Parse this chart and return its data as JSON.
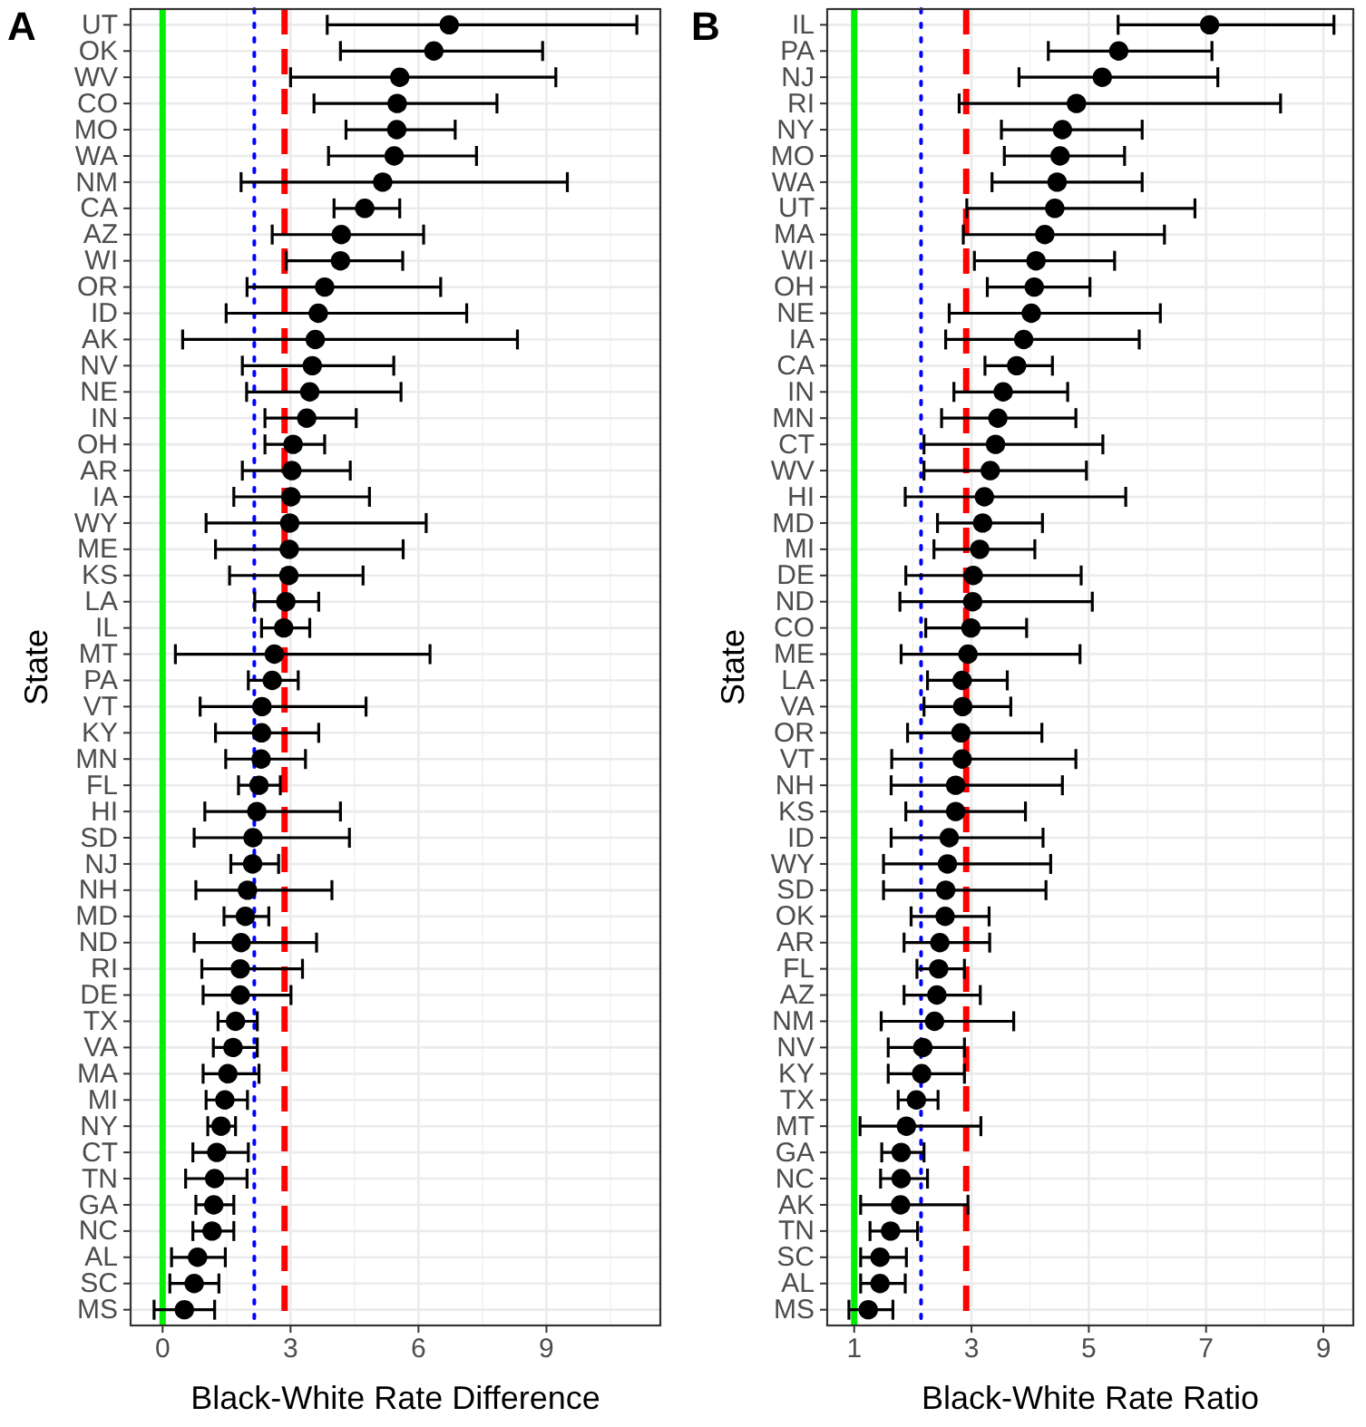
{
  "chart_data": [
    {
      "type": "scatter",
      "orientation": "horizontal",
      "title": "A",
      "xlabel": "Black-White Rate Difference",
      "ylabel": "State",
      "marker": "circle",
      "grid": true,
      "categories": [
        "UT",
        "OK",
        "WV",
        "CO",
        "MO",
        "WA",
        "NM",
        "CA",
        "AZ",
        "WI",
        "OR",
        "ID",
        "AK",
        "NV",
        "NE",
        "IN",
        "OH",
        "AR",
        "IA",
        "WY",
        "ME",
        "KS",
        "LA",
        "IL",
        "MT",
        "PA",
        "VT",
        "KY",
        "MN",
        "FL",
        "HI",
        "SD",
        "NJ",
        "NH",
        "MD",
        "ND",
        "RI",
        "DE",
        "TX",
        "VA",
        "MA",
        "MI",
        "NY",
        "CT",
        "TN",
        "GA",
        "NC",
        "AL",
        "SC",
        "MS"
      ],
      "xlim": [
        -0.75,
        11.67
      ],
      "xticks": [
        0,
        3,
        6,
        9
      ],
      "series": [
        {
          "color": "#000000",
          "values": [
            6.72,
            6.36,
            5.56,
            5.5,
            5.49,
            5.43,
            5.16,
            4.74,
            4.19,
            4.17,
            3.8,
            3.65,
            3.58,
            3.51,
            3.45,
            3.38,
            3.06,
            3.03,
            3.01,
            2.98,
            2.97,
            2.96,
            2.89,
            2.84,
            2.62,
            2.57,
            2.33,
            2.32,
            2.31,
            2.26,
            2.21,
            2.12,
            2.11,
            1.99,
            1.94,
            1.84,
            1.82,
            1.82,
            1.71,
            1.65,
            1.53,
            1.46,
            1.37,
            1.27,
            1.22,
            1.2,
            1.16,
            0.82,
            0.74,
            0.51
          ],
          "errors": [
            [
              3.86,
              11.12
            ],
            [
              4.17,
              8.91
            ],
            [
              3.0,
              9.22
            ],
            [
              3.55,
              7.84
            ],
            [
              4.3,
              6.86
            ],
            [
              3.89,
              7.36
            ],
            [
              1.84,
              9.49
            ],
            [
              4.02,
              5.56
            ],
            [
              2.57,
              6.12
            ],
            [
              2.9,
              5.63
            ],
            [
              1.98,
              6.52
            ],
            [
              1.49,
              7.13
            ],
            [
              0.47,
              8.32
            ],
            [
              1.87,
              5.42
            ],
            [
              1.97,
              5.59
            ],
            [
              2.4,
              4.54
            ],
            [
              2.4,
              3.8
            ],
            [
              1.87,
              4.4
            ],
            [
              1.67,
              4.85
            ],
            [
              1.02,
              6.18
            ],
            [
              1.24,
              5.64
            ],
            [
              1.57,
              4.7
            ],
            [
              2.16,
              3.66
            ],
            [
              2.32,
              3.45
            ],
            [
              0.3,
              6.27
            ],
            [
              2.01,
              3.18
            ],
            [
              0.88,
              4.77
            ],
            [
              1.24,
              3.66
            ],
            [
              1.48,
              3.35
            ],
            [
              1.78,
              2.76
            ],
            [
              0.99,
              4.17
            ],
            [
              0.74,
              4.38
            ],
            [
              1.6,
              2.72
            ],
            [
              0.78,
              3.97
            ],
            [
              1.44,
              2.49
            ],
            [
              0.74,
              3.61
            ],
            [
              0.92,
              3.28
            ],
            [
              0.95,
              3.01
            ],
            [
              1.3,
              2.22
            ],
            [
              1.19,
              2.22
            ],
            [
              0.95,
              2.26
            ],
            [
              1.02,
              1.99
            ],
            [
              1.06,
              1.71
            ],
            [
              0.71,
              2.01
            ],
            [
              0.54,
              1.98
            ],
            [
              0.78,
              1.67
            ],
            [
              0.71,
              1.67
            ],
            [
              0.21,
              1.47
            ],
            [
              0.17,
              1.32
            ],
            [
              -0.2,
              1.22
            ]
          ]
        }
      ],
      "ref_lines": [
        {
          "axis": "x",
          "value": 0,
          "color": "#00ee00",
          "line_style": "solid"
        },
        {
          "axis": "x",
          "value": 2.15,
          "color": "#0000ff",
          "line_style": "dotted"
        },
        {
          "axis": "x",
          "value": 2.86,
          "color": "#ff0000",
          "line_style": "dashed"
        }
      ]
    },
    {
      "type": "scatter",
      "orientation": "horizontal",
      "title": "B",
      "xlabel": "Black-White Rate Ratio",
      "ylabel": "State",
      "marker": "circle",
      "grid": true,
      "categories": [
        "IL",
        "PA",
        "NJ",
        "RI",
        "NY",
        "MO",
        "WA",
        "UT",
        "MA",
        "WI",
        "OH",
        "NE",
        "IA",
        "CA",
        "IN",
        "MN",
        "CT",
        "WV",
        "HI",
        "MD",
        "MI",
        "DE",
        "ND",
        "CO",
        "ME",
        "LA",
        "VA",
        "OR",
        "VT",
        "NH",
        "KS",
        "ID",
        "WY",
        "SD",
        "OK",
        "AR",
        "FL",
        "AZ",
        "NM",
        "NV",
        "KY",
        "TX",
        "MT",
        "GA",
        "NC",
        "AK",
        "TN",
        "SC",
        "AL",
        "MS"
      ],
      "xlim": [
        0.54,
        9.51
      ],
      "xticks": [
        1,
        3,
        5,
        7,
        9
      ],
      "series": [
        {
          "color": "#000000",
          "values": [
            7.06,
            5.51,
            5.23,
            4.79,
            4.55,
            4.51,
            4.46,
            4.42,
            4.25,
            4.1,
            4.07,
            4.02,
            3.89,
            3.77,
            3.54,
            3.45,
            3.41,
            3.32,
            3.22,
            3.19,
            3.14,
            3.03,
            3.02,
            2.99,
            2.94,
            2.84,
            2.85,
            2.82,
            2.84,
            2.73,
            2.73,
            2.62,
            2.59,
            2.56,
            2.55,
            2.46,
            2.44,
            2.41,
            2.37,
            2.17,
            2.15,
            2.06,
            1.89,
            1.8,
            1.8,
            1.79,
            1.62,
            1.44,
            1.44,
            1.24
          ],
          "errors": [
            [
              5.5,
              9.18
            ],
            [
              4.31,
              7.1
            ],
            [
              3.81,
              7.2
            ],
            [
              2.79,
              8.27
            ],
            [
              3.51,
              5.91
            ],
            [
              3.56,
              5.61
            ],
            [
              3.35,
              5.91
            ],
            [
              2.92,
              6.81
            ],
            [
              2.86,
              6.29
            ],
            [
              3.05,
              5.44
            ],
            [
              3.27,
              5.02
            ],
            [
              2.62,
              6.22
            ],
            [
              2.56,
              5.86
            ],
            [
              3.23,
              4.38
            ],
            [
              2.7,
              4.64
            ],
            [
              2.49,
              4.78
            ],
            [
              2.19,
              5.24
            ],
            [
              2.19,
              4.96
            ],
            [
              1.87,
              5.63
            ],
            [
              2.42,
              4.21
            ],
            [
              2.36,
              4.08
            ],
            [
              1.88,
              4.87
            ],
            [
              1.78,
              5.06
            ],
            [
              2.22,
              3.94
            ],
            [
              1.8,
              4.85
            ],
            [
              2.25,
              3.61
            ],
            [
              2.19,
              3.67
            ],
            [
              1.91,
              4.2
            ],
            [
              1.64,
              4.78
            ],
            [
              1.63,
              4.55
            ],
            [
              1.88,
              3.92
            ],
            [
              1.63,
              4.22
            ],
            [
              1.5,
              4.35
            ],
            [
              1.5,
              4.27
            ],
            [
              1.97,
              3.3
            ],
            [
              1.85,
              3.31
            ],
            [
              2.07,
              2.88
            ],
            [
              1.85,
              3.15
            ],
            [
              1.46,
              3.72
            ],
            [
              1.58,
              2.88
            ],
            [
              1.58,
              2.88
            ],
            [
              1.75,
              2.43
            ],
            [
              1.1,
              3.16
            ],
            [
              1.47,
              2.19
            ],
            [
              1.45,
              2.25
            ],
            [
              1.11,
              2.94
            ],
            [
              1.27,
              2.08
            ],
            [
              1.11,
              1.89
            ],
            [
              1.11,
              1.87
            ],
            [
              0.91,
              1.66
            ]
          ]
        }
      ],
      "ref_lines": [
        {
          "axis": "x",
          "value": 1,
          "color": "#00ee00",
          "line_style": "solid"
        },
        {
          "axis": "x",
          "value": 2.14,
          "color": "#0000ff",
          "line_style": "dotted"
        },
        {
          "axis": "x",
          "value": 2.91,
          "color": "#ff0000",
          "line_style": "dashed"
        }
      ]
    }
  ]
}
